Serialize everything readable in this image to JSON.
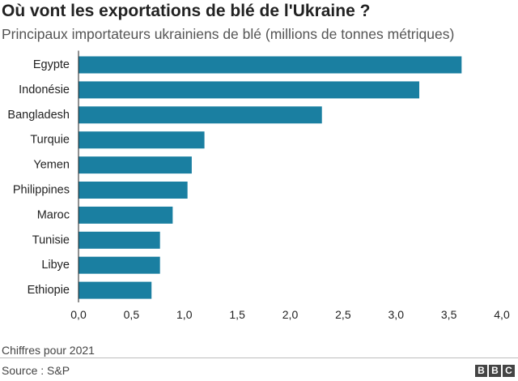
{
  "chart_data": {
    "type": "bar",
    "orientation": "horizontal",
    "title": "Où vont les exportations de blé de l'Ukraine ?",
    "subtitle": "Principaux importateurs ukrainiens de blé (millions de tonnes métriques)",
    "categories": [
      "Egypte",
      "Indonésie",
      "Bangladesh",
      "Turquie",
      "Yemen",
      "Philippines",
      "Maroc",
      "Tunisie",
      "Libye",
      "Ethiopie"
    ],
    "values": [
      3.62,
      3.22,
      2.3,
      1.19,
      1.07,
      1.03,
      0.89,
      0.77,
      0.77,
      0.69
    ],
    "xlim": [
      0,
      4
    ],
    "x_ticks": [
      0,
      0.5,
      1,
      1.5,
      2,
      2.5,
      3,
      3.5,
      4
    ],
    "x_tick_labels": [
      "0,0",
      "0,5",
      "1,0",
      "1,5",
      "2,0",
      "2,5",
      "3,0",
      "3,5",
      "4,0"
    ],
    "grid": false,
    "bar_color": "#1a7fa1",
    "note": "Chiffres pour 2021"
  },
  "footer": {
    "source": "Source : S&P",
    "logo_letters": [
      "B",
      "B",
      "C"
    ]
  },
  "colors": {
    "bar": "#1a7fa1",
    "axis": "#222222",
    "rule": "#bdbdbd"
  }
}
